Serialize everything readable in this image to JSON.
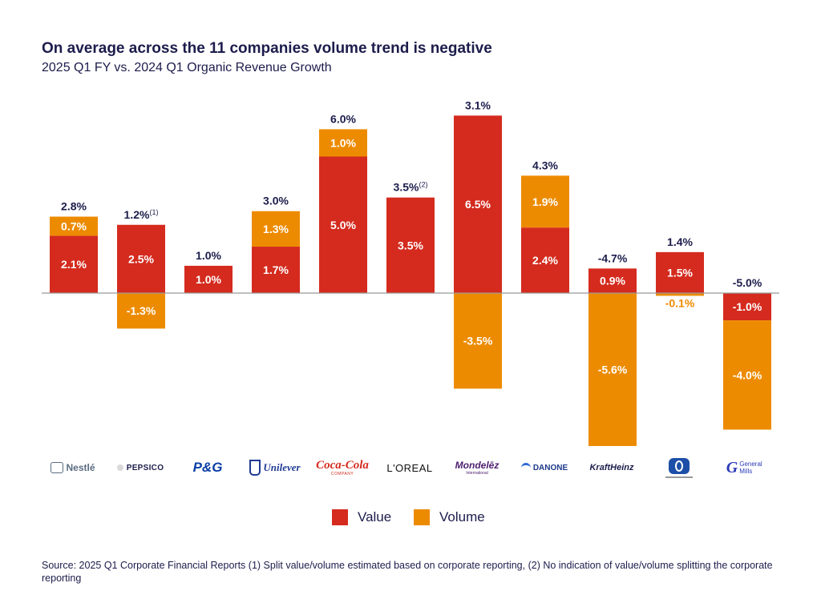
{
  "title": "On average across the 11 companies volume trend is negative",
  "subtitle": "2025 Q1 FY vs. 2024 Q1 Organic Revenue Growth",
  "colors": {
    "value": "#d42b1e",
    "volume": "#ed8b00",
    "text": "#1c1c4c",
    "axis": "#999999"
  },
  "legend": {
    "value_label": "Value",
    "volume_label": "Volume"
  },
  "source": "Source: 2025 Q1 Corporate Financial Reports (1) Split value/volume estimated based on corporate reporting, (2) No indication  of value/volume splitting the corporate reporting",
  "logos": [
    {
      "text": "Nestlé",
      "icon": "nestle-logo"
    },
    {
      "text": "PEPSICO",
      "icon": "pepsico-logo"
    },
    {
      "text": "P&G",
      "icon": "pg-logo"
    },
    {
      "text": "Unilever",
      "icon": "unilever-logo"
    },
    {
      "text": "Coca-Cola",
      "sub": "COMPANY",
      "icon": "cocacola-logo"
    },
    {
      "text": "L'OREAL",
      "icon": "loreal-logo"
    },
    {
      "text": "Mondelēz",
      "sub": "International",
      "icon": "mondelez-logo"
    },
    {
      "text": "DANONE",
      "icon": "danone-logo"
    },
    {
      "text": "KraftHeinz",
      "icon": "kraftheinz-logo"
    },
    {
      "text": "",
      "icon": "colgate-palmolive-logo"
    },
    {
      "text": "General Mills",
      "icon": "general-mills-logo"
    }
  ],
  "chart_data": {
    "type": "bar",
    "stacked": true,
    "title": "On average across the 11 companies volume trend is negative",
    "subtitle": "2025 Q1 FY vs. 2024 Q1 Organic Revenue Growth",
    "categories": [
      "Nestlé",
      "PepsiCo",
      "P&G",
      "Unilever",
      "Coca-Cola",
      "L'Oréal",
      "Mondelēz",
      "Danone",
      "Kraft Heinz",
      "Colgate-Palmolive",
      "General Mills"
    ],
    "series": [
      {
        "name": "Value",
        "values": [
          2.1,
          2.5,
          1.0,
          1.7,
          5.0,
          3.5,
          6.5,
          2.4,
          0.9,
          1.5,
          -1.0
        ]
      },
      {
        "name": "Volume",
        "values": [
          0.7,
          -1.3,
          null,
          1.3,
          1.0,
          null,
          -3.5,
          1.9,
          -5.6,
          -0.1,
          -4.0
        ]
      }
    ],
    "totals": [
      "2.8%",
      "1.2%",
      "1.0%",
      "3.0%",
      "6.0%",
      "3.5%",
      "3.1%",
      "4.3%",
      "-4.7%",
      "1.4%",
      "-5.0%"
    ],
    "total_notes": [
      "",
      "(1)",
      "",
      "",
      "",
      "(2)",
      "",
      "",
      "",
      "",
      ""
    ],
    "value_labels": [
      "2.1%",
      "2.5%",
      "1.0%",
      "1.7%",
      "5.0%",
      "3.5%",
      "6.5%",
      "2.4%",
      "0.9%",
      "1.5%",
      "-1.0%"
    ],
    "volume_labels": [
      "0.7%",
      "-1.3%",
      "",
      "1.3%",
      "1.0%",
      "",
      "-3.5%",
      "1.9%",
      "-5.6%",
      "-0.1%",
      "-4.0%"
    ],
    "ylim": [
      -6.0,
      7.0
    ],
    "grid": false,
    "legend_position": "bottom-center",
    "ylabel": "",
    "xlabel": ""
  }
}
